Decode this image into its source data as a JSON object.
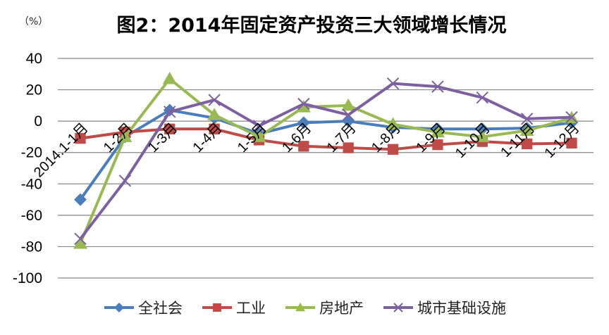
{
  "chart_data": {
    "type": "line",
    "title": "图2：2014年固定资产投资三大领域增长情况",
    "unit_label": "（%）",
    "xlabel": "",
    "ylabel": "%",
    "ylim": [
      -100,
      40
    ],
    "yticks": [
      40,
      20,
      0,
      -20,
      -40,
      -60,
      -80,
      -100
    ],
    "grid": true,
    "legend_position": "bottom",
    "categories": [
      "2014.1-1月",
      "1-2月",
      "1-3月",
      "1-4月",
      "1-5月",
      "1-6月",
      "1-7月",
      "1-8月",
      "1-9月",
      "1-10月",
      "1-11月",
      "1-12月"
    ],
    "series": [
      {
        "name": "全社会",
        "color": "#4a7ebb",
        "marker": "diamond",
        "values": [
          -50,
          -10,
          7,
          2,
          -8,
          -1,
          0,
          -4,
          -5,
          -5,
          -4.5,
          -1
        ]
      },
      {
        "name": "工业",
        "color": "#be4b48",
        "marker": "square",
        "values": [
          -11,
          -7,
          -5,
          -5,
          -12,
          -16,
          -17,
          -18,
          -15,
          -13,
          -14.5,
          -14
        ]
      },
      {
        "name": "房地产",
        "color": "#98b954",
        "marker": "triangle",
        "values": [
          -78,
          -10,
          27,
          4,
          -10,
          9,
          10,
          -2,
          -7,
          -10,
          -6,
          2
        ]
      },
      {
        "name": "城市基础设施",
        "color": "#7d60a0",
        "marker": "x",
        "values": [
          -75,
          -38,
          6,
          13.5,
          -3,
          11,
          4,
          24,
          22,
          15,
          1.5,
          2.5
        ]
      }
    ]
  }
}
